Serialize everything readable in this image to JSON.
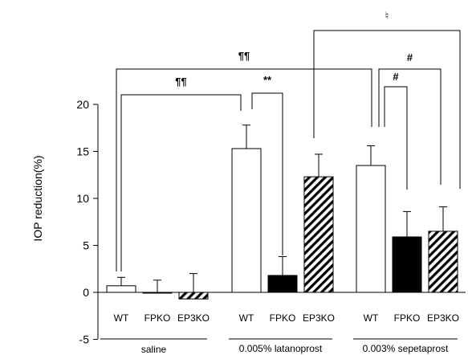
{
  "chart_data": {
    "type": "bar",
    "ylabel": "IOP reduction(%)",
    "ylim": [
      -5,
      20
    ],
    "y_ticks": [
      20,
      15,
      10,
      5,
      0,
      -5
    ],
    "grid": false,
    "groups": [
      {
        "name": "saline",
        "bars": [
          {
            "label": "WT",
            "value": 0.7,
            "error": 0.9,
            "fill": "white"
          },
          {
            "label": "FPKO",
            "value": 0.0,
            "error": 1.3,
            "fill": "white"
          },
          {
            "label": "EP3KO",
            "value": -0.7,
            "error": 2.0,
            "fill": "hatched"
          }
        ]
      },
      {
        "name": "0.005% latanoprost",
        "bars": [
          {
            "label": "WT",
            "value": 15.3,
            "error": 2.5,
            "fill": "white"
          },
          {
            "label": "FPKO",
            "value": 1.8,
            "error": 2.0,
            "fill": "black"
          },
          {
            "label": "EP3KO",
            "value": 12.3,
            "error": 2.4,
            "fill": "hatched"
          }
        ]
      },
      {
        "name": "0.003% sepetaprost",
        "bars": [
          {
            "label": "WT",
            "value": 13.5,
            "error": 2.1,
            "fill": "white"
          },
          {
            "label": "FPKO",
            "value": 5.9,
            "error": 2.7,
            "fill": "black"
          },
          {
            "label": "EP3KO",
            "value": 6.5,
            "error": 2.6,
            "fill": "hatched"
          }
        ]
      }
    ],
    "significance": [
      {
        "symbol": "¶¶",
        "from": "saline WT",
        "to": "0.005% latanoprost WT"
      },
      {
        "symbol": "¶¶",
        "from": "saline WT",
        "to": "0.003% sepetaprost WT"
      },
      {
        "symbol": "**",
        "from": "0.005% latanoprost WT",
        "to": "0.005% latanoprost FPKO"
      },
      {
        "symbol": "#",
        "from": "0.003% sepetaprost WT",
        "to": "0.003% sepetaprost FPKO"
      },
      {
        "symbol": "#",
        "from": "0.003% sepetaprost WT",
        "to": "0.003% sepetaprost EP3KO"
      },
      {
        "symbol": "♮",
        "from": "0.005% latanoprost EP3KO",
        "to": "0.003% sepetaprost EP3KO"
      }
    ]
  }
}
